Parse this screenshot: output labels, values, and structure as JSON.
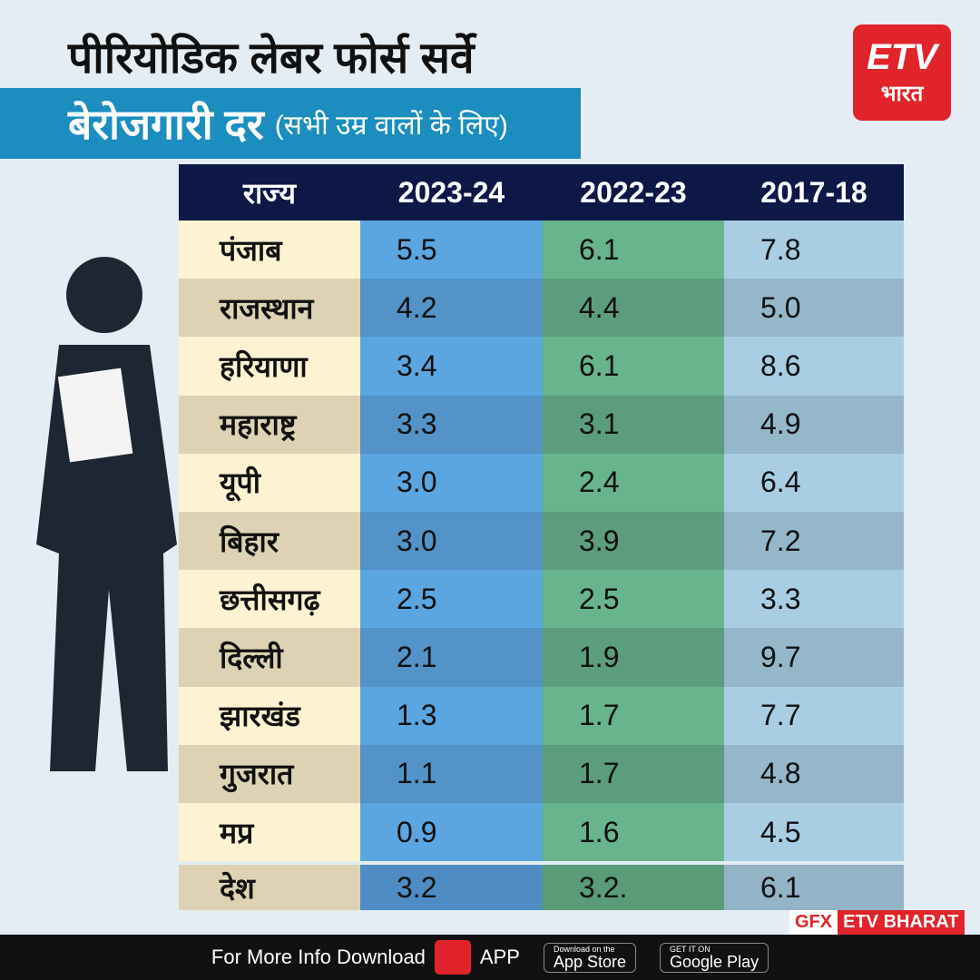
{
  "header": {
    "title": "पीरियोडिक लेबर फोर्स सर्वे",
    "subtitle": "बेरोजगारी दर",
    "note": "(सभी उम्र वालों के लिए)"
  },
  "logo": {
    "brand": "ETV",
    "name": "भारत"
  },
  "table": {
    "columns": [
      "राज्य",
      "2023-24",
      "2022-23",
      "2017-18"
    ],
    "rows": [
      [
        "पंजाब",
        "5.5",
        "6.1",
        "7.8"
      ],
      [
        "राजस्थान",
        "4.2",
        "4.4",
        "5.0"
      ],
      [
        "हरियाणा",
        "3.4",
        "6.1",
        "8.6"
      ],
      [
        "महाराष्ट्र",
        "3.3",
        "3.1",
        "4.9"
      ],
      [
        "यूपी",
        "3.0",
        "2.4",
        "6.4"
      ],
      [
        "बिहार",
        "3.0",
        "3.9",
        "7.2"
      ],
      [
        "छत्तीसगढ़",
        "2.5",
        "2.5",
        "3.3"
      ],
      [
        "दिल्ली",
        "2.1",
        "1.9",
        "9.7"
      ],
      [
        "झारखंड",
        "1.3",
        "1.7",
        "7.7"
      ],
      [
        "गुजरात",
        "1.1",
        "1.7",
        "4.8"
      ],
      [
        "मप्र",
        "0.9",
        "1.6",
        "4.5"
      ]
    ],
    "total": [
      "देश",
      "3.2",
      "3.2.",
      "6.1"
    ]
  },
  "credit": [
    "GFX",
    "ETV BHARAT"
  ],
  "footer": {
    "text": "For More Info Download",
    "app": "APP",
    "appstore_small": "Download on the",
    "appstore": "App Store",
    "play_small": "GET IT ON",
    "play": "Google Play"
  }
}
